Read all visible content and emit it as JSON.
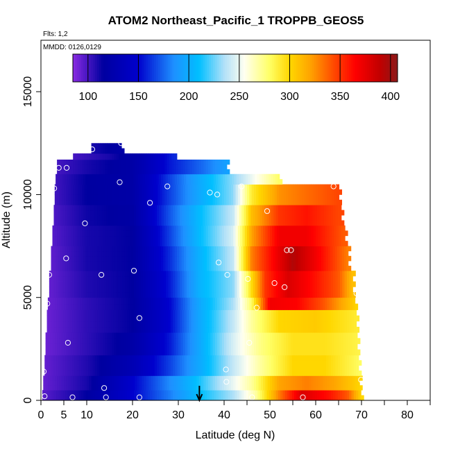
{
  "chart_data": {
    "type": "heatmap",
    "title": "ATOM2 Northeast_Pacific_1 TROPPB_GEOS5",
    "flights_label": "Flts: 1,2",
    "dates_label": "MMDD: 0126,0129",
    "xlabel": "Latitude (deg N)",
    "ylabel": "Altitude (m)",
    "xlim": [
      0,
      85
    ],
    "ylim": [
      0,
      17500
    ],
    "xticks": [
      0,
      5,
      10,
      20,
      30,
      40,
      50,
      60,
      70,
      80
    ],
    "yticks": [
      0,
      5000,
      10000,
      15000
    ],
    "colorbar": {
      "range": [
        85,
        407
      ],
      "ticks": [
        100,
        150,
        200,
        250,
        300,
        350,
        400
      ],
      "stops": [
        {
          "v": 85,
          "color": "#8a2be2"
        },
        {
          "v": 115,
          "color": "#0000a0"
        },
        {
          "v": 150,
          "color": "#0000cd"
        },
        {
          "v": 185,
          "color": "#1e90ff"
        },
        {
          "v": 210,
          "color": "#00bfff"
        },
        {
          "v": 235,
          "color": "#b0e0f8"
        },
        {
          "v": 255,
          "color": "#fffff0"
        },
        {
          "v": 280,
          "color": "#ffff66"
        },
        {
          "v": 300,
          "color": "#ffd700"
        },
        {
          "v": 320,
          "color": "#ffa500"
        },
        {
          "v": 345,
          "color": "#ff4500"
        },
        {
          "v": 365,
          "color": "#ff0000"
        },
        {
          "v": 390,
          "color": "#c00000"
        },
        {
          "v": 407,
          "color": "#8b1a1a"
        }
      ]
    },
    "heatmap_rows": [
      {
        "alt": [
          0,
          500
        ],
        "lat": [
          0.3,
          70.3
        ],
        "values": [
          [
            0,
            95
          ],
          [
            10,
            115
          ],
          [
            20,
            150
          ],
          [
            28,
            180
          ],
          [
            35,
            210
          ],
          [
            42,
            235
          ],
          [
            47,
            270
          ],
          [
            52,
            330
          ],
          [
            57,
            380
          ],
          [
            63,
            360
          ],
          [
            67,
            340
          ],
          [
            70,
            300
          ]
        ]
      },
      {
        "alt": [
          500,
          1200
        ],
        "lat": [
          0.5,
          70.0
        ],
        "values": [
          [
            0,
            92
          ],
          [
            10,
            110
          ],
          [
            18,
            140
          ],
          [
            26,
            175
          ],
          [
            33,
            205
          ],
          [
            40,
            240
          ],
          [
            46,
            270
          ],
          [
            52,
            320
          ],
          [
            58,
            330
          ],
          [
            64,
            320
          ],
          [
            70,
            300
          ]
        ]
      },
      {
        "alt": [
          1200,
          2200
        ],
        "lat": [
          0.8,
          69.8
        ],
        "values": [
          [
            0,
            92
          ],
          [
            10,
            108
          ],
          [
            20,
            130
          ],
          [
            28,
            165
          ],
          [
            35,
            200
          ],
          [
            42,
            240
          ],
          [
            48,
            270
          ],
          [
            55,
            300
          ],
          [
            62,
            300
          ],
          [
            70,
            280
          ]
        ]
      },
      {
        "alt": [
          2200,
          3300
        ],
        "lat": [
          1.0,
          69.5
        ],
        "values": [
          [
            0,
            90
          ],
          [
            10,
            105
          ],
          [
            20,
            120
          ],
          [
            28,
            155
          ],
          [
            35,
            200
          ],
          [
            42,
            245
          ],
          [
            48,
            275
          ],
          [
            55,
            295
          ],
          [
            62,
            295
          ],
          [
            70,
            285
          ]
        ]
      },
      {
        "alt": [
          3300,
          4400
        ],
        "lat": [
          1.3,
          69.3
        ],
        "values": [
          [
            0,
            90
          ],
          [
            10,
            105
          ],
          [
            20,
            115
          ],
          [
            28,
            150
          ],
          [
            35,
            200
          ],
          [
            42,
            240
          ],
          [
            46,
            270
          ],
          [
            52,
            300
          ],
          [
            60,
            305
          ],
          [
            69,
            290
          ]
        ]
      },
      {
        "alt": [
          4400,
          5000
        ],
        "lat": [
          1.5,
          69.0
        ],
        "values": [
          [
            0,
            90
          ],
          [
            10,
            105
          ],
          [
            20,
            115
          ],
          [
            28,
            150
          ],
          [
            35,
            200
          ],
          [
            42,
            235
          ],
          [
            46,
            280
          ],
          [
            50,
            370
          ],
          [
            56,
            365
          ],
          [
            62,
            340
          ],
          [
            69,
            300
          ]
        ]
      },
      {
        "alt": [
          5000,
          6300
        ],
        "lat": [
          1.8,
          68.5
        ],
        "values": [
          [
            0,
            90
          ],
          [
            10,
            108
          ],
          [
            20,
            115
          ],
          [
            28,
            155
          ],
          [
            35,
            205
          ],
          [
            42,
            230
          ],
          [
            45,
            280
          ],
          [
            49,
            350
          ],
          [
            54,
            380
          ],
          [
            60,
            360
          ],
          [
            65,
            340
          ],
          [
            68,
            310
          ]
        ]
      },
      {
        "alt": [
          6300,
          7500
        ],
        "lat": [
          2.2,
          67.5
        ],
        "values": [
          [
            0,
            90
          ],
          [
            10,
            110
          ],
          [
            20,
            115
          ],
          [
            28,
            160
          ],
          [
            35,
            205
          ],
          [
            42,
            240
          ],
          [
            46,
            330
          ],
          [
            50,
            360
          ],
          [
            55,
            395
          ],
          [
            60,
            370
          ],
          [
            67,
            330
          ]
        ]
      },
      {
        "alt": [
          7500,
          8500
        ],
        "lat": [
          2.5,
          66.8
        ],
        "values": [
          [
            0,
            92
          ],
          [
            10,
            110
          ],
          [
            20,
            115
          ],
          [
            28,
            165
          ],
          [
            35,
            210
          ],
          [
            42,
            245
          ],
          [
            46,
            320
          ],
          [
            52,
            370
          ],
          [
            58,
            370
          ],
          [
            66,
            340
          ]
        ]
      },
      {
        "alt": [
          8500,
          9500
        ],
        "lat": [
          2.8,
          66.0
        ],
        "values": [
          [
            0,
            93
          ],
          [
            10,
            112
          ],
          [
            20,
            118
          ],
          [
            28,
            170
          ],
          [
            35,
            210
          ],
          [
            42,
            240
          ],
          [
            46,
            310
          ],
          [
            52,
            350
          ],
          [
            58,
            360
          ],
          [
            65,
            345
          ]
        ]
      },
      {
        "alt": [
          9500,
          10500
        ],
        "lat": [
          3.0,
          65.5
        ],
        "values": [
          [
            0,
            95
          ],
          [
            10,
            115
          ],
          [
            20,
            120
          ],
          [
            28,
            165
          ],
          [
            35,
            200
          ],
          [
            42,
            230
          ],
          [
            46,
            290
          ],
          [
            52,
            325
          ],
          [
            58,
            335
          ],
          [
            65,
            345
          ]
        ]
      },
      {
        "alt": [
          10500,
          11000
        ],
        "lat": [
          3.2,
          52.5
        ],
        "values": [
          [
            0,
            95
          ],
          [
            10,
            115
          ],
          [
            20,
            120
          ],
          [
            28,
            165
          ],
          [
            35,
            200
          ],
          [
            42,
            230
          ],
          [
            47,
            255
          ],
          [
            52,
            280
          ]
        ]
      },
      {
        "alt": [
          11000,
          11700
        ],
        "lat": [
          3.5,
          41.0
        ],
        "values": [
          [
            0,
            95
          ],
          [
            10,
            110
          ],
          [
            20,
            120
          ],
          [
            28,
            155
          ],
          [
            35,
            175
          ],
          [
            41,
            195
          ]
        ]
      },
      {
        "alt": [
          11700,
          12000
        ],
        "lat": [
          7.0,
          29.5
        ],
        "values": [
          [
            7,
            100
          ],
          [
            15,
            110
          ],
          [
            22,
            125
          ],
          [
            29,
            160
          ]
        ]
      },
      {
        "alt": [
          12000,
          12500
        ],
        "lat": [
          11.0,
          18.0
        ],
        "values": [
          [
            11,
            110
          ],
          [
            18,
            120
          ]
        ]
      }
    ],
    "observations": [
      [
        0.8,
        200
      ],
      [
        6.9,
        150
      ],
      [
        14.2,
        150
      ],
      [
        21.5,
        150
      ],
      [
        13.8,
        600
      ],
      [
        40.5,
        900
      ],
      [
        69.9,
        1000
      ],
      [
        0.6,
        1400
      ],
      [
        40.4,
        1500
      ],
      [
        5.9,
        2800
      ],
      [
        45.5,
        2800
      ],
      [
        21.5,
        4000
      ],
      [
        1.4,
        4700
      ],
      [
        47.1,
        4500
      ],
      [
        68.9,
        5200
      ],
      [
        53.2,
        5500
      ],
      [
        51.0,
        5700
      ],
      [
        45.2,
        5900
      ],
      [
        1.8,
        6100
      ],
      [
        13.2,
        6100
      ],
      [
        20.3,
        6300
      ],
      [
        40.7,
        6100
      ],
      [
        38.8,
        6700
      ],
      [
        5.5,
        6900
      ],
      [
        53.7,
        7300
      ],
      [
        54.6,
        7300
      ],
      [
        9.6,
        8600
      ],
      [
        49.4,
        9200
      ],
      [
        23.8,
        9600
      ],
      [
        36.9,
        10100
      ],
      [
        38.5,
        10000
      ],
      [
        2.9,
        10300
      ],
      [
        27.6,
        10400
      ],
      [
        43.8,
        10400
      ],
      [
        63.9,
        10400
      ],
      [
        17.2,
        10600
      ],
      [
        3.9,
        11300
      ],
      [
        5.6,
        11300
      ],
      [
        11.2,
        12200
      ],
      [
        17.5,
        12500
      ],
      [
        57.2,
        150
      ],
      [
        46.1,
        150
      ]
    ],
    "marker": {
      "lat": 34.6
    }
  }
}
